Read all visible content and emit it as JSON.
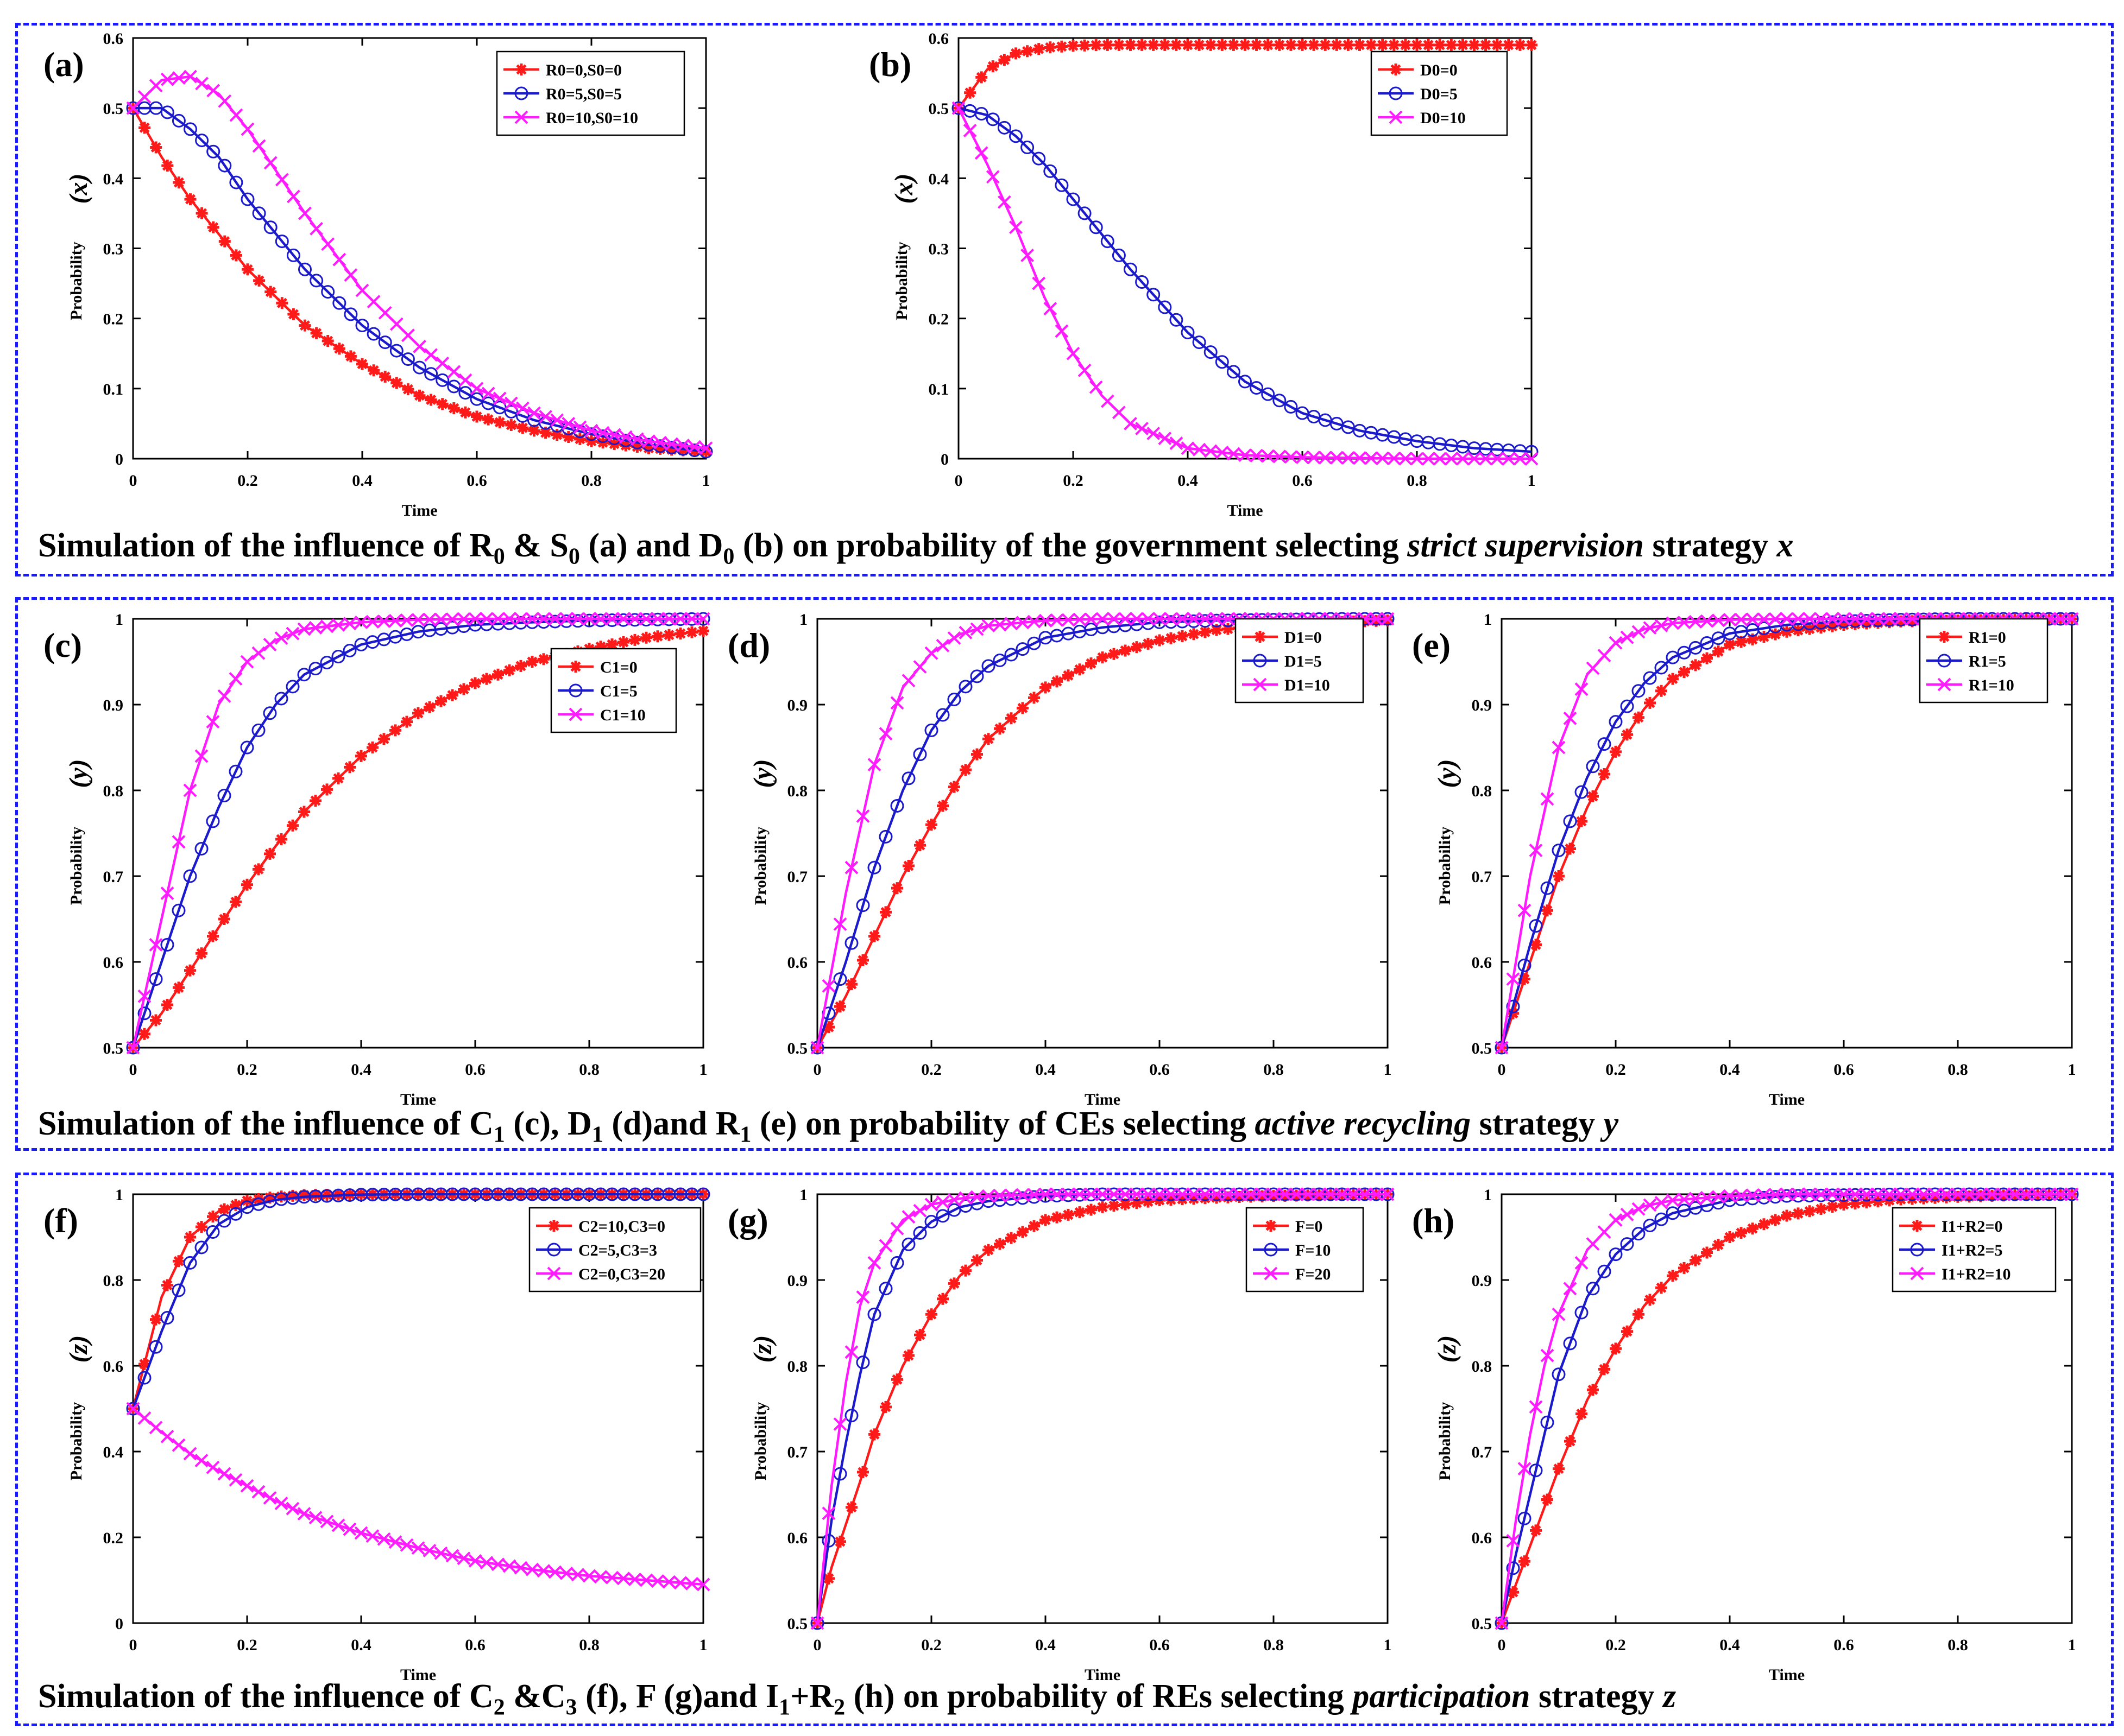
{
  "colors": {
    "red": "#ff1a1a",
    "blue": "#1a1acc",
    "magenta": "#ff1aff",
    "frame": "#1a1aff"
  },
  "captions": {
    "row1": {
      "a": "Simulation of the influence of  R",
      "b": "0",
      "c": " & S",
      "d": "0",
      "e": " (a) and  D",
      "f": "0",
      "g": " (b) on probability of the government selecting ",
      "h": "strict supervision",
      "i": " strategy ",
      "j": "x"
    },
    "row2": {
      "a": "Simulation of the influence of  C",
      "b": "1",
      "c": " (c), D",
      "d": "1",
      "e": " (d)and R",
      "f": "1",
      "g": " (e) on probability of CEs selecting ",
      "h": "active recycling",
      "i": " strategy ",
      "j": "y"
    },
    "row3": {
      "a": "Simulation of the influence of  C",
      "b": "2",
      "c": " &C",
      "d": "3",
      "e": " (f), F (g)and I",
      "f": "1",
      "g": "+R",
      "h": "2",
      "i": " (h) on probability of REs selecting ",
      "j": "participation",
      "k": " strategy ",
      "l": "z"
    }
  },
  "chart_data": [
    {
      "id": "a",
      "type": "line",
      "panel_label": "(a)",
      "xlabel": "Time",
      "ylabel": "Probability",
      "ylabel_var": "(x)",
      "xlim": [
        0,
        1
      ],
      "ylim": [
        0,
        0.6
      ],
      "xticks": [
        "0",
        "0.2",
        "0.4",
        "0.6",
        "0.8",
        "1"
      ],
      "yticks": [
        "0",
        "0.1",
        "0.2",
        "0.3",
        "0.4",
        "0.5",
        "0.6"
      ],
      "legend_position": "top-right",
      "x": [
        0,
        0.05,
        0.1,
        0.15,
        0.2,
        0.25,
        0.3,
        0.4,
        0.5,
        0.6,
        0.7,
        0.8,
        0.9,
        1.0
      ],
      "series": [
        {
          "name": "R0=0,S0=0",
          "color": "red",
          "marker": "star",
          "values": [
            0.5,
            0.43,
            0.37,
            0.32,
            0.27,
            0.23,
            0.19,
            0.135,
            0.09,
            0.06,
            0.04,
            0.025,
            0.015,
            0.01
          ]
        },
        {
          "name": "R0=5,S0=5",
          "color": "blue",
          "marker": "circle",
          "values": [
            0.5,
            0.5,
            0.47,
            0.43,
            0.37,
            0.32,
            0.27,
            0.19,
            0.13,
            0.085,
            0.055,
            0.035,
            0.02,
            0.01
          ]
        },
        {
          "name": "R0=10,S0=10",
          "color": "magenta",
          "marker": "cross",
          "values": [
            0.5,
            0.54,
            0.545,
            0.52,
            0.47,
            0.41,
            0.35,
            0.24,
            0.16,
            0.1,
            0.065,
            0.04,
            0.025,
            0.015
          ]
        }
      ]
    },
    {
      "id": "b",
      "type": "line",
      "panel_label": "(b)",
      "xlabel": "Time",
      "ylabel": "Probability",
      "ylabel_var": "(x)",
      "xlim": [
        0,
        1
      ],
      "ylim": [
        0,
        0.6
      ],
      "xticks": [
        "0",
        "0.2",
        "0.4",
        "0.6",
        "0.8",
        "1"
      ],
      "yticks": [
        "0",
        "0.1",
        "0.2",
        "0.3",
        "0.4",
        "0.5",
        "0.6"
      ],
      "legend_position": "top-right",
      "x": [
        0,
        0.05,
        0.1,
        0.15,
        0.2,
        0.25,
        0.3,
        0.4,
        0.5,
        0.6,
        0.7,
        0.8,
        0.9,
        1.0
      ],
      "series": [
        {
          "name": "D0=0",
          "color": "red",
          "marker": "star",
          "values": [
            0.5,
            0.555,
            0.578,
            0.586,
            0.589,
            0.59,
            0.59,
            0.59,
            0.59,
            0.59,
            0.59,
            0.59,
            0.59,
            0.59
          ]
        },
        {
          "name": "D0=5",
          "color": "blue",
          "marker": "circle",
          "values": [
            0.5,
            0.49,
            0.46,
            0.42,
            0.37,
            0.32,
            0.27,
            0.18,
            0.11,
            0.065,
            0.04,
            0.025,
            0.015,
            0.01
          ]
        },
        {
          "name": "D0=10",
          "color": "magenta",
          "marker": "cross",
          "values": [
            0.5,
            0.42,
            0.33,
            0.23,
            0.15,
            0.09,
            0.05,
            0.015,
            0.005,
            0.002,
            0.001,
            0.0,
            0.0,
            0.0
          ]
        }
      ]
    },
    {
      "id": "c",
      "type": "line",
      "panel_label": "(c)",
      "xlabel": "Time",
      "ylabel": "Probability",
      "ylabel_var": "(y)",
      "xlim": [
        0,
        1
      ],
      "ylim": [
        0.5,
        1
      ],
      "xticks": [
        "0",
        "0.2",
        "0.4",
        "0.6",
        "0.8",
        "1"
      ],
      "yticks": [
        "0.5",
        "0.6",
        "0.7",
        "0.8",
        "0.9",
        "1"
      ],
      "legend_position": "right",
      "x": [
        0,
        0.05,
        0.1,
        0.15,
        0.2,
        0.25,
        0.3,
        0.4,
        0.5,
        0.6,
        0.7,
        0.8,
        0.9,
        1.0
      ],
      "series": [
        {
          "name": "C1=0",
          "color": "red",
          "marker": "star",
          "values": [
            0.5,
            0.54,
            0.59,
            0.64,
            0.69,
            0.735,
            0.775,
            0.84,
            0.89,
            0.925,
            0.95,
            0.965,
            0.978,
            0.986
          ]
        },
        {
          "name": "C1=5",
          "color": "blue",
          "marker": "circle",
          "values": [
            0.5,
            0.6,
            0.7,
            0.78,
            0.85,
            0.9,
            0.935,
            0.97,
            0.985,
            0.993,
            0.996,
            0.998,
            0.999,
            1.0
          ]
        },
        {
          "name": "C1=10",
          "color": "magenta",
          "marker": "cross",
          "values": [
            0.5,
            0.65,
            0.8,
            0.9,
            0.95,
            0.975,
            0.988,
            0.996,
            0.999,
            1.0,
            1.0,
            1.0,
            1.0,
            1.0
          ]
        }
      ]
    },
    {
      "id": "d",
      "type": "line",
      "panel_label": "(d)",
      "xlabel": "Time",
      "ylabel": "Probability",
      "ylabel_var": "(y)",
      "xlim": [
        0,
        1
      ],
      "ylim": [
        0.5,
        1
      ],
      "xticks": [
        "0",
        "0.2",
        "0.4",
        "0.6",
        "0.8",
        "1"
      ],
      "yticks": [
        "0.5",
        "0.6",
        "0.7",
        "0.8",
        "0.9",
        "1"
      ],
      "legend_position": "top-right",
      "x": [
        0,
        0.05,
        0.1,
        0.15,
        0.2,
        0.25,
        0.3,
        0.4,
        0.5,
        0.6,
        0.7,
        0.8,
        0.9,
        1.0
      ],
      "series": [
        {
          "name": "D1=0",
          "color": "red",
          "marker": "star",
          "values": [
            0.5,
            0.56,
            0.63,
            0.7,
            0.76,
            0.815,
            0.86,
            0.92,
            0.955,
            0.975,
            0.987,
            0.993,
            0.996,
            0.998
          ]
        },
        {
          "name": "D1=5",
          "color": "blue",
          "marker": "circle",
          "values": [
            0.5,
            0.6,
            0.71,
            0.8,
            0.87,
            0.915,
            0.945,
            0.978,
            0.99,
            0.996,
            0.998,
            0.999,
            1.0,
            1.0
          ]
        },
        {
          "name": "D1=10",
          "color": "magenta",
          "marker": "cross",
          "values": [
            0.5,
            0.68,
            0.83,
            0.92,
            0.96,
            0.982,
            0.992,
            0.998,
            1.0,
            1.0,
            1.0,
            1.0,
            1.0,
            1.0
          ]
        }
      ]
    },
    {
      "id": "e",
      "type": "line",
      "panel_label": "(e)",
      "xlabel": "Time",
      "ylabel": "Probability",
      "ylabel_var": "(y)",
      "xlim": [
        0,
        1
      ],
      "ylim": [
        0.5,
        1
      ],
      "xticks": [
        "0",
        "0.2",
        "0.4",
        "0.6",
        "0.8",
        "1"
      ],
      "yticks": [
        "0.5",
        "0.6",
        "0.7",
        "0.8",
        "0.9",
        "1"
      ],
      "legend_position": "top-right",
      "x": [
        0,
        0.05,
        0.1,
        0.15,
        0.2,
        0.25,
        0.3,
        0.4,
        0.5,
        0.6,
        0.7,
        0.8,
        0.9,
        1.0
      ],
      "series": [
        {
          "name": "R1=0",
          "color": "red",
          "marker": "star",
          "values": [
            0.5,
            0.6,
            0.7,
            0.78,
            0.845,
            0.895,
            0.93,
            0.97,
            0.985,
            0.993,
            0.997,
            0.998,
            0.999,
            1.0
          ]
        },
        {
          "name": "R1=5",
          "color": "blue",
          "marker": "circle",
          "values": [
            0.5,
            0.62,
            0.73,
            0.815,
            0.88,
            0.925,
            0.955,
            0.983,
            0.993,
            0.997,
            0.999,
            1.0,
            1.0,
            1.0
          ]
        },
        {
          "name": "R1=10",
          "color": "magenta",
          "marker": "cross",
          "values": [
            0.5,
            0.7,
            0.85,
            0.935,
            0.972,
            0.988,
            0.995,
            0.999,
            1.0,
            1.0,
            1.0,
            1.0,
            1.0,
            1.0
          ]
        }
      ]
    },
    {
      "id": "f",
      "type": "line",
      "panel_label": "(f)",
      "xlabel": "Time",
      "ylabel": "Probability",
      "ylabel_var": "(z)",
      "xlim": [
        0,
        1
      ],
      "ylim": [
        0,
        1
      ],
      "xticks": [
        "0",
        "0.2",
        "0.4",
        "0.6",
        "0.8",
        "1"
      ],
      "yticks": [
        "0",
        "0.2",
        "0.4",
        "0.6",
        "0.8",
        "1"
      ],
      "legend_position": "top-right",
      "x": [
        0,
        0.05,
        0.1,
        0.15,
        0.2,
        0.25,
        0.3,
        0.4,
        0.5,
        0.6,
        0.7,
        0.8,
        0.9,
        1.0
      ],
      "series": [
        {
          "name": "C2=10,C3=0",
          "color": "red",
          "marker": "star",
          "values": [
            0.5,
            0.76,
            0.9,
            0.96,
            0.985,
            0.994,
            0.998,
            1.0,
            1.0,
            1.0,
            1.0,
            1.0,
            1.0,
            1.0
          ]
        },
        {
          "name": "C2=5,C3=3",
          "color": "blue",
          "marker": "circle",
          "values": [
            0.5,
            0.68,
            0.84,
            0.93,
            0.97,
            0.987,
            0.994,
            0.999,
            1.0,
            1.0,
            1.0,
            1.0,
            1.0,
            1.0
          ]
        },
        {
          "name": "C2=0,C3=20",
          "color": "magenta",
          "marker": "cross",
          "values": [
            0.5,
            0.445,
            0.395,
            0.355,
            0.32,
            0.285,
            0.255,
            0.21,
            0.175,
            0.145,
            0.125,
            0.11,
            0.1,
            0.09
          ]
        }
      ]
    },
    {
      "id": "g",
      "type": "line",
      "panel_label": "(g)",
      "xlabel": "Time",
      "ylabel": "Probability",
      "ylabel_var": "(z)",
      "xlim": [
        0,
        1
      ],
      "ylim": [
        0.5,
        1
      ],
      "xticks": [
        "0",
        "0.2",
        "0.4",
        "0.6",
        "0.8",
        "1"
      ],
      "yticks": [
        "0.5",
        "0.6",
        "0.7",
        "0.8",
        "0.9",
        "1"
      ],
      "legend_position": "top-right",
      "x": [
        0,
        0.025,
        0.05,
        0.075,
        0.1,
        0.15,
        0.2,
        0.25,
        0.3,
        0.4,
        0.5,
        0.6,
        0.7,
        0.8,
        0.9,
        1.0
      ],
      "series": [
        {
          "name": "F=0",
          "color": "red",
          "marker": "star",
          "values": [
            0.5,
            0.565,
            0.615,
            0.665,
            0.72,
            0.8,
            0.86,
            0.905,
            0.935,
            0.97,
            0.985,
            0.993,
            0.996,
            0.998,
            0.999,
            1.0
          ]
        },
        {
          "name": "F=10",
          "color": "blue",
          "marker": "circle",
          "values": [
            0.5,
            0.62,
            0.71,
            0.79,
            0.86,
            0.935,
            0.968,
            0.985,
            0.992,
            0.998,
            1.0,
            1.0,
            1.0,
            1.0,
            1.0,
            1.0
          ]
        },
        {
          "name": "F=20",
          "color": "magenta",
          "marker": "cross",
          "values": [
            0.5,
            0.66,
            0.78,
            0.87,
            0.92,
            0.97,
            0.988,
            0.995,
            0.998,
            1.0,
            1.0,
            1.0,
            1.0,
            1.0,
            1.0,
            1.0
          ]
        }
      ]
    },
    {
      "id": "h",
      "type": "line",
      "panel_label": "(h)",
      "xlabel": "Time",
      "ylabel": "Probability",
      "ylabel_var": "(z)",
      "xlim": [
        0,
        1
      ],
      "ylim": [
        0.5,
        1
      ],
      "xticks": [
        "0",
        "0.2",
        "0.4",
        "0.6",
        "0.8",
        "1"
      ],
      "yticks": [
        "0.5",
        "0.6",
        "0.7",
        "0.8",
        "0.9",
        "1"
      ],
      "legend_position": "top-right",
      "x": [
        0,
        0.025,
        0.05,
        0.075,
        0.1,
        0.15,
        0.2,
        0.25,
        0.3,
        0.4,
        0.5,
        0.6,
        0.7,
        0.8,
        0.9,
        1.0
      ],
      "series": [
        {
          "name": "I1+R2=0",
          "color": "red",
          "marker": "star",
          "values": [
            0.5,
            0.545,
            0.59,
            0.635,
            0.68,
            0.76,
            0.82,
            0.87,
            0.905,
            0.95,
            0.975,
            0.988,
            0.994,
            0.997,
            0.999,
            1.0
          ]
        },
        {
          "name": "I1+R2=5",
          "color": "blue",
          "marker": "circle",
          "values": [
            0.5,
            0.58,
            0.65,
            0.72,
            0.79,
            0.88,
            0.93,
            0.96,
            0.978,
            0.993,
            0.998,
            0.999,
            1.0,
            1.0,
            1.0,
            1.0
          ]
        },
        {
          "name": "I1+R2=10",
          "color": "magenta",
          "marker": "cross",
          "values": [
            0.5,
            0.62,
            0.72,
            0.8,
            0.86,
            0.935,
            0.97,
            0.986,
            0.993,
            0.998,
            1.0,
            1.0,
            1.0,
            1.0,
            1.0,
            1.0
          ]
        }
      ]
    }
  ]
}
